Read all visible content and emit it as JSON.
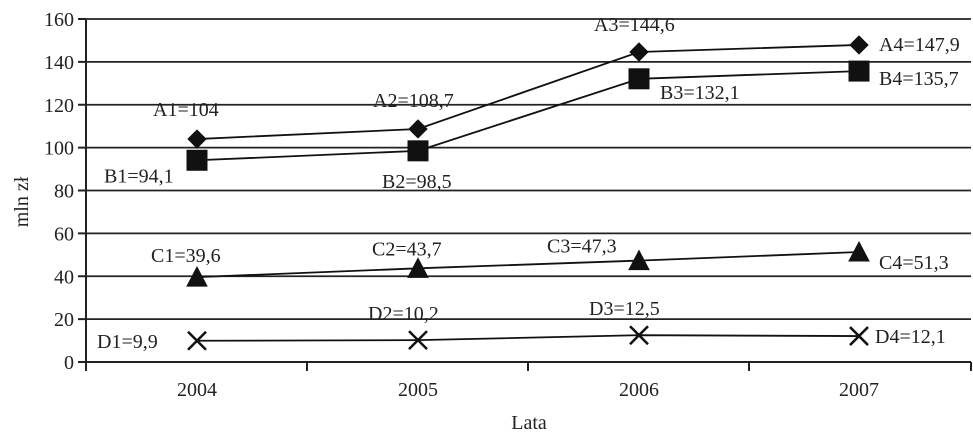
{
  "chart_data": {
    "type": "line",
    "title": "",
    "xlabel": "Lata",
    "ylabel": "mln zł",
    "categories": [
      "2004",
      "2005",
      "2006",
      "2007"
    ],
    "ylim": [
      0,
      160
    ],
    "yticks": [
      "0",
      "20",
      "40",
      "60",
      "80",
      "100",
      "120",
      "140",
      "160"
    ],
    "grid": "horizontal",
    "legend": "none",
    "series": [
      {
        "marker": "diamond",
        "values": [
          104,
          108.7,
          144.6,
          147.9
        ],
        "labels": [
          "A1=104",
          "A2=108,7",
          "A3=144,6",
          "A4=147,9"
        ]
      },
      {
        "marker": "square",
        "values": [
          94.1,
          98.5,
          132.1,
          135.7
        ],
        "labels": [
          "B1=94,1",
          "B2=98,5",
          "B3=132,1",
          "B4=135,7"
        ]
      },
      {
        "marker": "triangle",
        "values": [
          39.6,
          43.7,
          47.3,
          51.3
        ],
        "labels": [
          "C1=39,6",
          "C2=43,7",
          "C3=47,3",
          "C4=51,3"
        ]
      },
      {
        "marker": "x",
        "values": [
          9.9,
          10.2,
          12.5,
          12.1
        ],
        "labels": [
          "D1=9,9",
          "D2=10,2",
          "D3=12,5",
          "D4=12,1"
        ]
      }
    ],
    "colors": {
      "line": "#111111",
      "grid": "#222222",
      "text": "#222222"
    }
  }
}
